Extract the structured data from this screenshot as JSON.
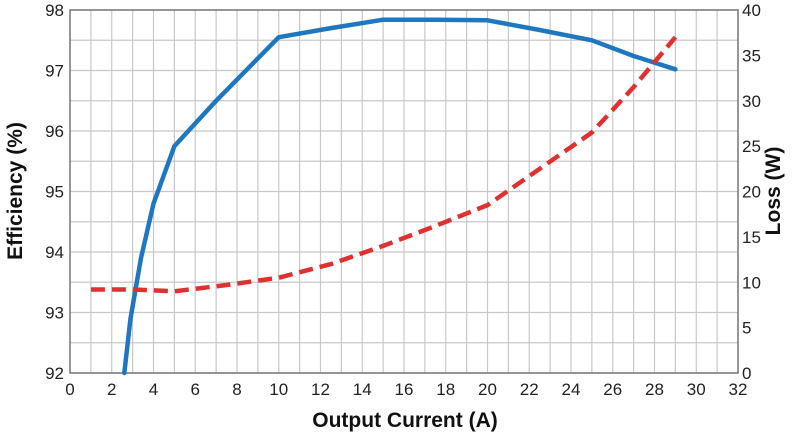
{
  "chart_data": {
    "type": "line",
    "xlabel": "Output Current (A)",
    "ylabel_left": "Efficiency (%)",
    "ylabel_right": "Loss (W)",
    "xlim": [
      0,
      32
    ],
    "ylim_left": [
      92,
      98
    ],
    "ylim_right": [
      0,
      40
    ],
    "x_ticks": [
      "0",
      "2",
      "4",
      "6",
      "8",
      "10",
      "12",
      "14",
      "16",
      "18",
      "20",
      "22",
      "24",
      "26",
      "28",
      "30",
      "32"
    ],
    "y_left_ticks": [
      "92",
      "93",
      "94",
      "95",
      "96",
      "97",
      "98"
    ],
    "y_right_ticks": [
      "0",
      "5",
      "10",
      "15",
      "20",
      "25",
      "30",
      "35",
      "40"
    ],
    "grid": true,
    "series": [
      {
        "axis": "left",
        "color": "#1f77c0",
        "style": "solid",
        "x": [
          2.6,
          2.9,
          3.4,
          4.0,
          5.0,
          7.0,
          10.0,
          12.5,
          15.0,
          17.5,
          20.0,
          22.5,
          25.0,
          27.0,
          29.0
        ],
        "y": [
          92.0,
          92.9,
          93.9,
          94.8,
          95.75,
          96.5,
          97.55,
          97.7,
          97.84,
          97.84,
          97.83,
          97.67,
          97.5,
          97.24,
          97.02
        ]
      },
      {
        "axis": "right",
        "color": "#e03030",
        "style": "dashed",
        "x": [
          1.0,
          3.0,
          5.0,
          7.5,
          10.0,
          12.5,
          15.0,
          17.5,
          20.0,
          22.5,
          25.0,
          27.0,
          29.0
        ],
        "y": [
          9.2,
          9.2,
          9.0,
          9.7,
          10.5,
          12.0,
          14.0,
          16.2,
          18.5,
          22.5,
          26.5,
          31.5,
          37.0
        ]
      }
    ]
  }
}
